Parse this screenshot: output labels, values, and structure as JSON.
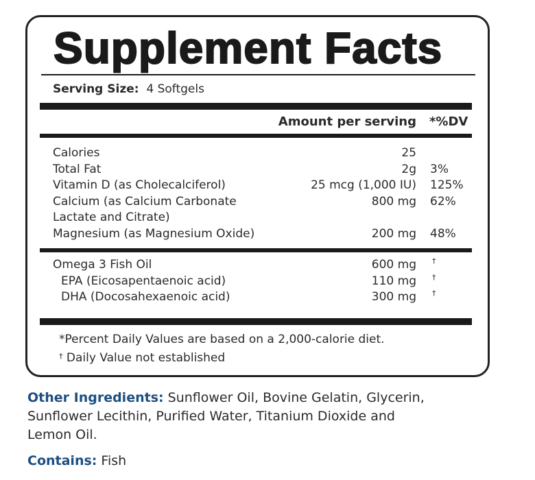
{
  "title": "Supplement Facts",
  "serving": {
    "label": "Serving Size:",
    "value": "4 Softgels"
  },
  "header": {
    "amount": "Amount per serving",
    "dv": "*%DV"
  },
  "rows": [
    {
      "name": "Calories",
      "amount": "25",
      "dv": ""
    },
    {
      "name": "Total Fat",
      "amount": "2g",
      "dv": "3%"
    },
    {
      "name": "Vitamin D (as Cholecalciferol)",
      "amount": "25 mcg (1,000 IU)",
      "dv": "125%"
    },
    {
      "name": "Calcium (as Calcium Carbonate",
      "amount": "800 mg",
      "dv": "62%"
    },
    {
      "name": "Lactate and Citrate)",
      "amount": "",
      "dv": ""
    },
    {
      "name": "Magnesium (as Magnesium Oxide)",
      "amount": "200 mg",
      "dv": "48%"
    }
  ],
  "omega_rows": [
    {
      "name": "Omega 3 Fish Oil",
      "amount": "600 mg",
      "dv": "†"
    },
    {
      "name": "EPA (Eicosapentaenoic acid)",
      "amount": "110 mg",
      "dv": "†"
    },
    {
      "name": "DHA (Docosahexaenoic acid)",
      "amount": "300 mg",
      "dv": "†"
    }
  ],
  "footnotes": {
    "percent": "*Percent Daily Values are based on a 2,000-calorie diet.",
    "dagger_symbol": "†",
    "dagger": "Daily Value not established"
  },
  "other_ingredients": {
    "label": "Other Ingredients:",
    "line1": "Sunflower Oil, Bovine Gelatin, Glycerin,",
    "line2": "Sunflower Lecithin, Purified Water, Titanium Dioxide and",
    "line3": "Lemon Oil."
  },
  "contains": {
    "label": "Contains:",
    "value": "Fish"
  },
  "colors": {
    "label_blue": "#1d4f80",
    "ink": "#1a1a1a"
  }
}
